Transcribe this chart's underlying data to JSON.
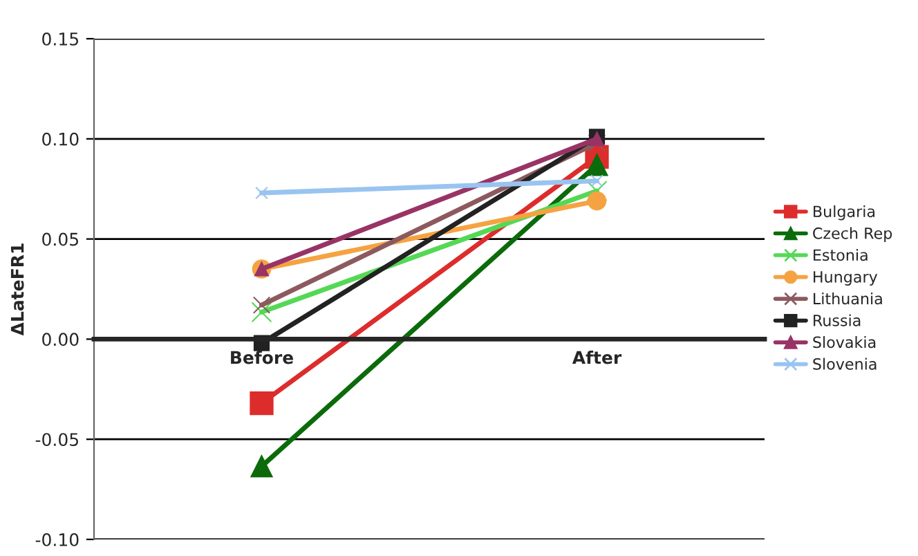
{
  "chart_data": {
    "type": "line",
    "ylabel": "ΔLateFR1",
    "categories": [
      "Before",
      "After"
    ],
    "series": [
      {
        "name": "Bulgaria",
        "color": "#dd2c2c",
        "marker": "square",
        "values": [
          -0.032,
          0.091
        ]
      },
      {
        "name": "Czech Rep",
        "color": "#0b6b0b",
        "marker": "triangle",
        "values": [
          -0.0635,
          0.087
        ]
      },
      {
        "name": "Estonia",
        "color": "#55d855",
        "marker": "cross",
        "values": [
          0.0135,
          0.074
        ]
      },
      {
        "name": "Hungary",
        "color": "#f5a342",
        "marker": "circle",
        "values": [
          0.035,
          0.069
        ]
      },
      {
        "name": "Lithuania",
        "color": "#8c5a5e",
        "marker": "cross",
        "values": [
          0.017,
          0.098
        ]
      },
      {
        "name": "Russia",
        "color": "#222222",
        "marker": "square",
        "values": [
          -0.002,
          0.101
        ]
      },
      {
        "name": "Slovakia",
        "color": "#993366",
        "marker": "triangle",
        "values": [
          0.035,
          0.1
        ]
      },
      {
        "name": "Slovenia",
        "color": "#99c4f0",
        "marker": "cross",
        "values": [
          0.073,
          0.079
        ]
      }
    ],
    "ylim": [
      -0.1,
      0.15
    ],
    "yticks": [
      {
        "value": -0.1,
        "label": "-0.10"
      },
      {
        "value": -0.05,
        "label": "-0.05"
      },
      {
        "value": 0,
        "label": "0.00"
      },
      {
        "value": 0.05,
        "label": "0.05"
      },
      {
        "value": 0.1,
        "label": "0.10"
      },
      {
        "value": 0.15,
        "label": "0.15"
      }
    ],
    "grid": "y",
    "legend": "right",
    "line_style": "solid"
  }
}
